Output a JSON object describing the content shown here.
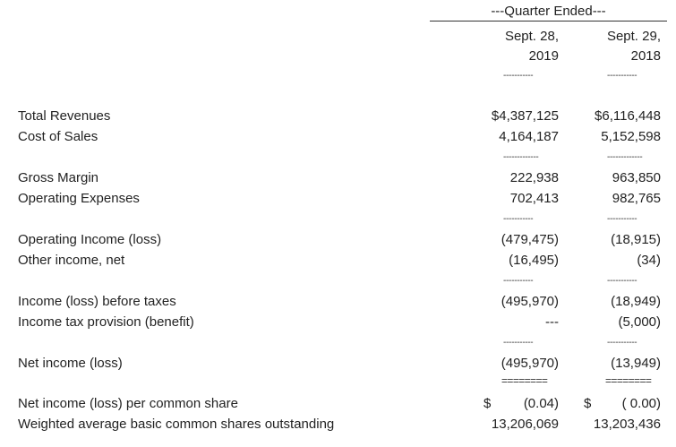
{
  "header": {
    "quarter_ended": "---Quarter Ended---",
    "col1": {
      "line1": "Sept. 28,",
      "line2": "2019"
    },
    "col2": {
      "line1": "Sept. 29,",
      "line2": "2018"
    }
  },
  "separators": {
    "single": "-----------",
    "single_wide": "-------------",
    "double": "========"
  },
  "rows": {
    "total_revenues": {
      "label": "Total Revenues",
      "v2019": "$4,387,125",
      "v2018": "$6,116,448"
    },
    "cost_of_sales": {
      "label": "Cost of Sales",
      "v2019": "4,164,187",
      "v2018": "5,152,598"
    },
    "gross_margin": {
      "label": "Gross Margin",
      "v2019": "222,938",
      "v2018": "963,850"
    },
    "operating_expenses": {
      "label": "Operating Expenses",
      "v2019": "702,413",
      "v2018": "982,765"
    },
    "operating_income": {
      "label": "Operating Income (loss)",
      "v2019": "(479,475)",
      "v2018": "(18,915)"
    },
    "other_income": {
      "label": "Other income, net",
      "v2019": "(16,495)",
      "v2018": "(34)"
    },
    "income_before_taxes": {
      "label": "Income (loss) before taxes",
      "v2019": "(495,970)",
      "v2018": "(18,949)"
    },
    "income_tax": {
      "label": "Income tax provision (benefit)",
      "v2019": "---",
      "v2018": "(5,000)"
    },
    "net_income": {
      "label": "Net income (loss)",
      "v2019": "(495,970)",
      "v2018": "(13,949)"
    },
    "eps": {
      "label": "Net income (loss) per common share",
      "cur2019": "$",
      "v2019": "(0.04)",
      "cur2018": "$",
      "v2018": "( 0.00)"
    },
    "shares": {
      "label": "Weighted average basic common shares outstanding",
      "v2019": "13,206,069",
      "v2018": "13,203,436"
    }
  }
}
